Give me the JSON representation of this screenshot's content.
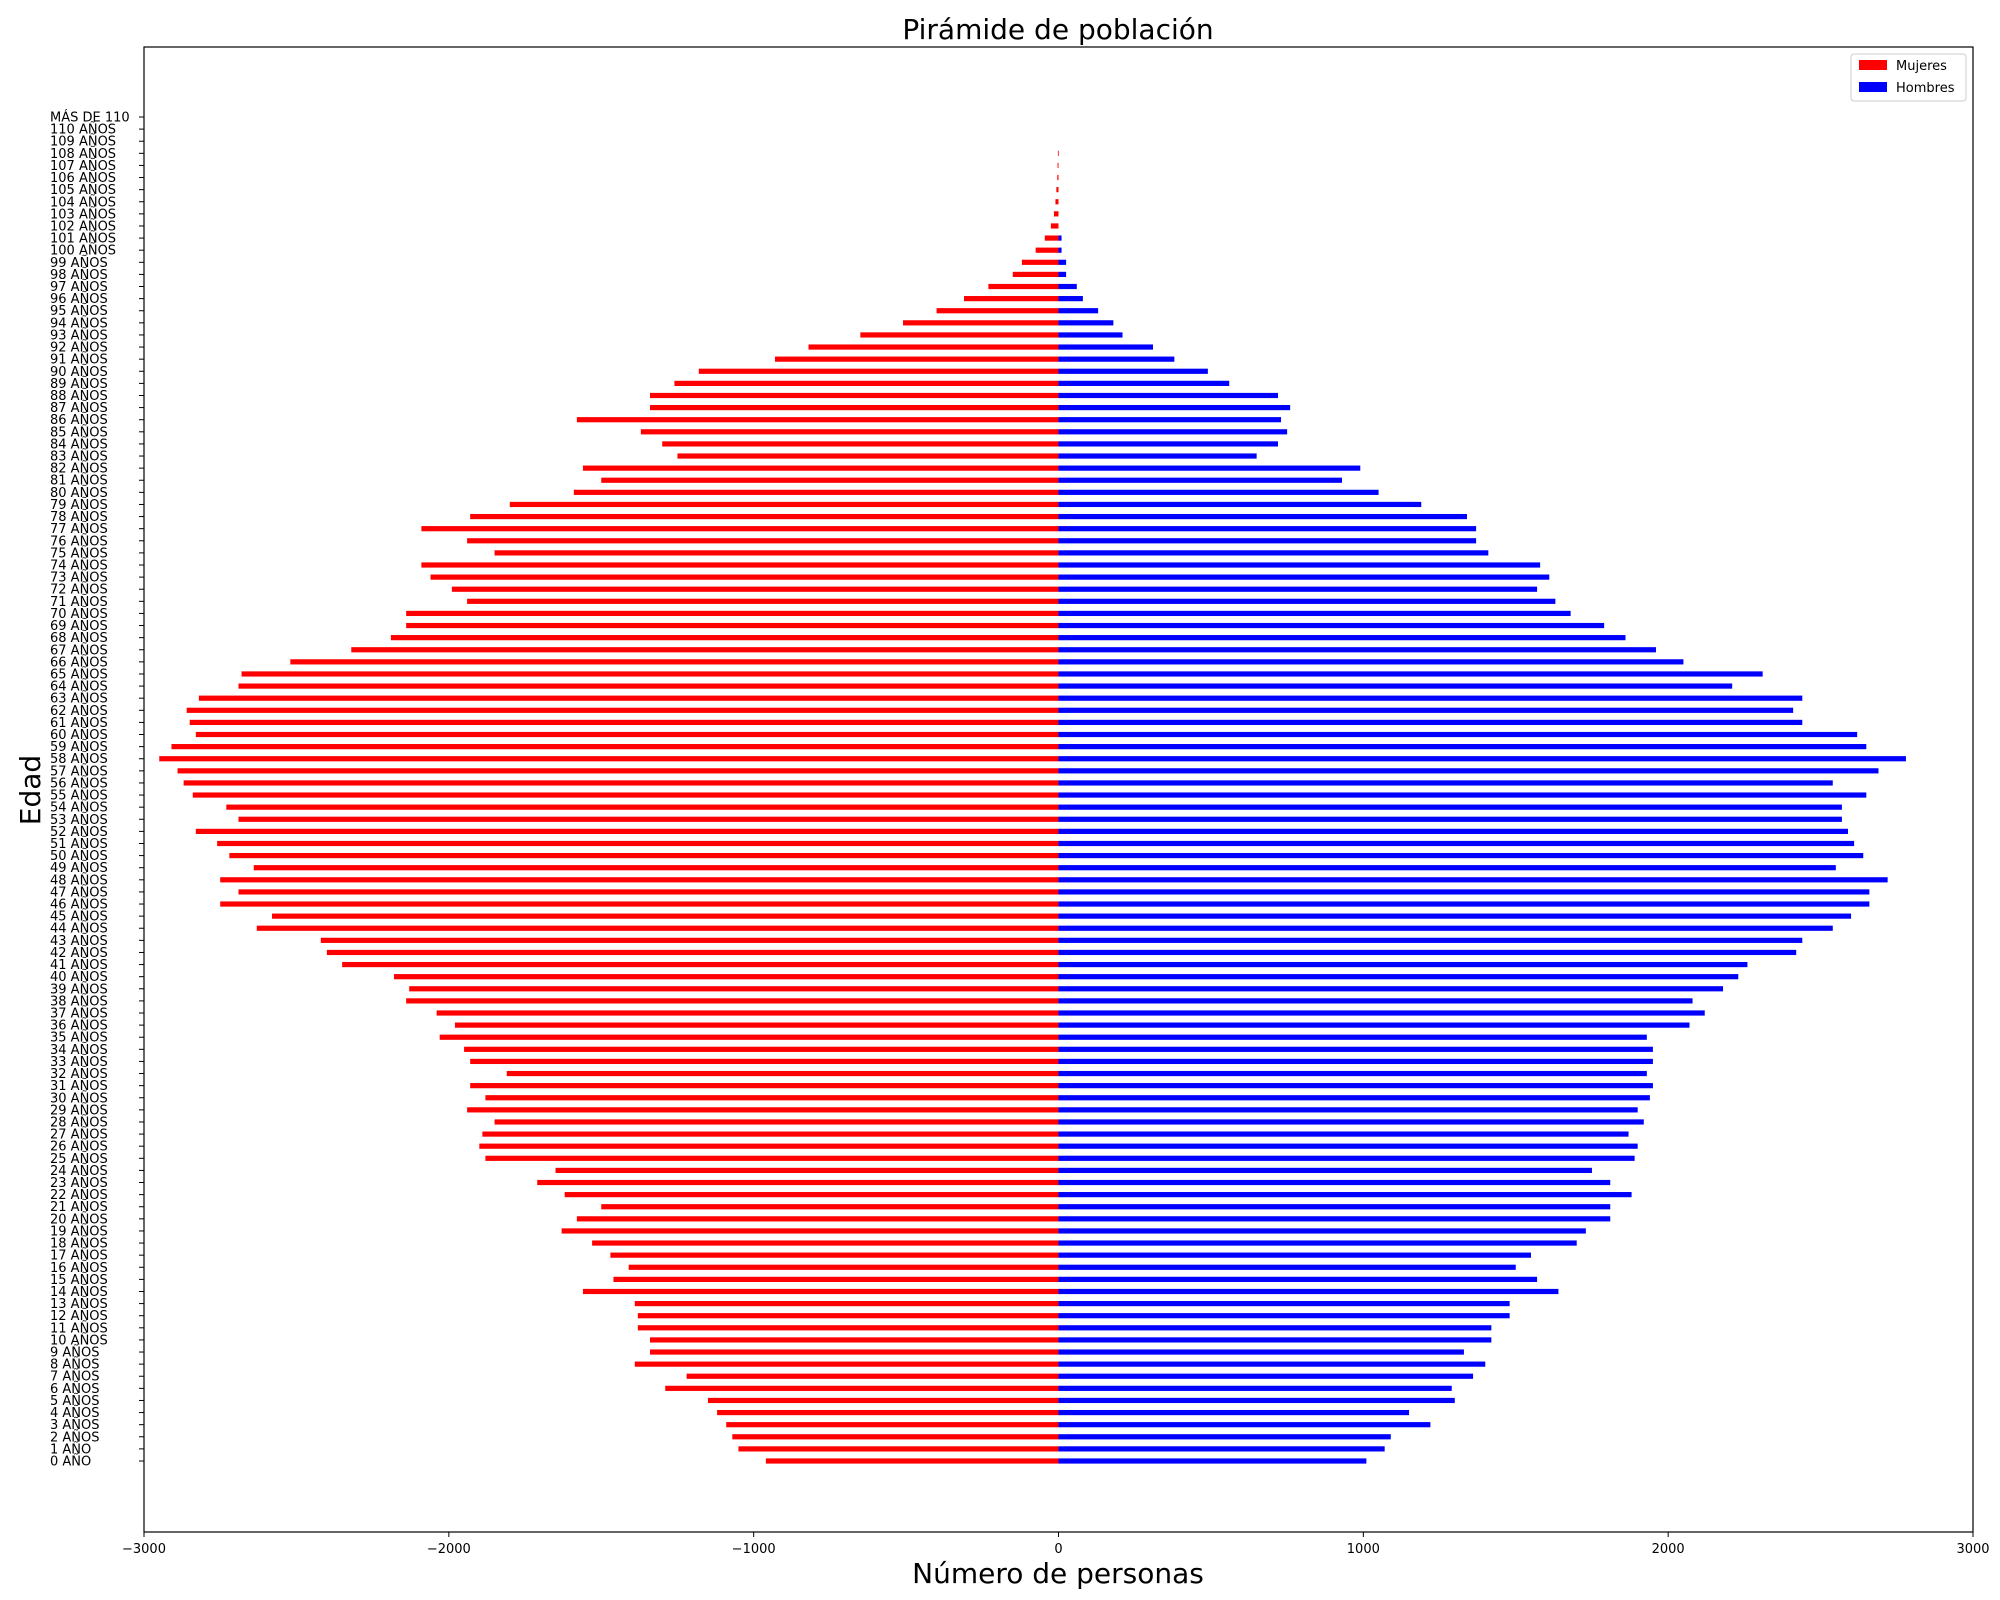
{
  "chart_data": {
    "type": "bar",
    "orientation": "horizontal",
    "title": "Pirámide de población",
    "xlabel": "Número de personas",
    "ylabel": "Edad",
    "xlim": [
      -3000,
      3000
    ],
    "xticks": [
      -3000,
      -2000,
      -1000,
      0,
      1000,
      2000,
      3000
    ],
    "xtick_labels": [
      "−3000",
      "−2000",
      "−1000",
      "0",
      "1000",
      "2000",
      "3000"
    ],
    "grid": false,
    "legend_position": "top-right",
    "categories": [
      "0 AÑO",
      "1 AÑO",
      "2 AÑOS",
      "3 AÑOS",
      "4 AÑOS",
      "5 AÑOS",
      "6 AÑOS",
      "7 AÑOS",
      "8 AÑOS",
      "9 AÑOS",
      "10 AÑOS",
      "11 AÑOS",
      "12 AÑOS",
      "13 AÑOS",
      "14 AÑOS",
      "15 AÑOS",
      "16 AÑOS",
      "17 AÑOS",
      "18 AÑOS",
      "19 AÑOS",
      "20 AÑOS",
      "21 AÑOS",
      "22 AÑOS",
      "23 AÑOS",
      "24 AÑOS",
      "25 AÑOS",
      "26 AÑOS",
      "27 AÑOS",
      "28 AÑOS",
      "29 AÑOS",
      "30 AÑOS",
      "31 AÑOS",
      "32 AÑOS",
      "33 AÑOS",
      "34 AÑOS",
      "35 AÑOS",
      "36 AÑOS",
      "37 AÑOS",
      "38 AÑOS",
      "39 AÑOS",
      "40 AÑOS",
      "41 AÑOS",
      "42 AÑOS",
      "43 AÑOS",
      "44 AÑOS",
      "45 AÑOS",
      "46 AÑOS",
      "47 AÑOS",
      "48 AÑOS",
      "49 AÑOS",
      "50 AÑOS",
      "51 AÑOS",
      "52 AÑOS",
      "53 AÑOS",
      "54 AÑOS",
      "55 AÑOS",
      "56 AÑOS",
      "57 AÑOS",
      "58 AÑOS",
      "59 AÑOS",
      "60 AÑOS",
      "61 AÑOS",
      "62 AÑOS",
      "63 AÑOS",
      "64 AÑOS",
      "65 AÑOS",
      "66 AÑOS",
      "67 AÑOS",
      "68 AÑOS",
      "69 AÑOS",
      "70 AÑOS",
      "71 AÑOS",
      "72 AÑOS",
      "73 AÑOS",
      "74 AÑOS",
      "75 AÑOS",
      "76 AÑOS",
      "77 AÑOS",
      "78 AÑOS",
      "79 AÑOS",
      "80 AÑOS",
      "81 AÑOS",
      "82 AÑOS",
      "83 AÑOS",
      "84 AÑOS",
      "85 AÑOS",
      "86 AÑOS",
      "87 AÑOS",
      "88 AÑOS",
      "89 AÑOS",
      "90 AÑOS",
      "91 AÑOS",
      "92 AÑOS",
      "93 AÑOS",
      "94 AÑOS",
      "95 AÑOS",
      "96 AÑOS",
      "97 AÑOS",
      "98 AÑOS",
      "99 AÑOS",
      "100 AÑOS",
      "101 AÑOS",
      "102 AÑOS",
      "103 AÑOS",
      "104 AÑOS",
      "105 AÑOS",
      "106 AÑOS",
      "107 AÑOS",
      "108 AÑOS",
      "109 AÑOS",
      "110 AÑOS",
      "MÁS DE 110"
    ],
    "series": [
      {
        "name": "Mujeres",
        "color": "#ff0000",
        "values": [
          -960,
          -1050,
          -1070,
          -1090,
          -1120,
          -1150,
          -1290,
          -1220,
          -1390,
          -1340,
          -1340,
          -1380,
          -1380,
          -1390,
          -1560,
          -1460,
          -1410,
          -1470,
          -1530,
          -1630,
          -1580,
          -1500,
          -1620,
          -1710,
          -1650,
          -1880,
          -1900,
          -1890,
          -1850,
          -1940,
          -1880,
          -1930,
          -1810,
          -1930,
          -1950,
          -2030,
          -1980,
          -2040,
          -2140,
          -2130,
          -2180,
          -2350,
          -2400,
          -2420,
          -2630,
          -2580,
          -2750,
          -2690,
          -2750,
          -2640,
          -2720,
          -2760,
          -2830,
          -2690,
          -2730,
          -2840,
          -2870,
          -2890,
          -2950,
          -2910,
          -2830,
          -2850,
          -2860,
          -2820,
          -2690,
          -2680,
          -2520,
          -2320,
          -2190,
          -2140,
          -2140,
          -1940,
          -1990,
          -2060,
          -2090,
          -1850,
          -1940,
          -2090,
          -1930,
          -1800,
          -1590,
          -1500,
          -1560,
          -1250,
          -1300,
          -1370,
          -1580,
          -1340,
          -1340,
          -1260,
          -1180,
          -930,
          -820,
          -650,
          -510,
          -400,
          -310,
          -230,
          -150,
          -120,
          -75,
          -45,
          -25,
          -15,
          -10,
          -7,
          -4,
          -3,
          -2,
          0,
          0,
          0
        ]
      },
      {
        "name": "Hombres",
        "color": "#0000ff",
        "values": [
          1010,
          1070,
          1090,
          1220,
          1150,
          1300,
          1290,
          1360,
          1400,
          1330,
          1420,
          1420,
          1480,
          1480,
          1640,
          1570,
          1500,
          1550,
          1700,
          1730,
          1810,
          1810,
          1880,
          1810,
          1750,
          1890,
          1900,
          1870,
          1920,
          1900,
          1940,
          1950,
          1930,
          1950,
          1950,
          1930,
          2070,
          2120,
          2080,
          2180,
          2230,
          2260,
          2420,
          2440,
          2540,
          2600,
          2660,
          2660,
          2720,
          2550,
          2640,
          2610,
          2590,
          2570,
          2570,
          2650,
          2540,
          2690,
          2780,
          2650,
          2620,
          2440,
          2410,
          2440,
          2210,
          2310,
          2050,
          1960,
          1860,
          1790,
          1680,
          1630,
          1570,
          1610,
          1580,
          1410,
          1370,
          1370,
          1340,
          1190,
          1050,
          930,
          990,
          650,
          720,
          750,
          730,
          760,
          720,
          560,
          490,
          380,
          310,
          210,
          180,
          130,
          80,
          60,
          25,
          25,
          10,
          10,
          0,
          0,
          0,
          0,
          0,
          0,
          0,
          0,
          0,
          0
        ]
      }
    ]
  }
}
